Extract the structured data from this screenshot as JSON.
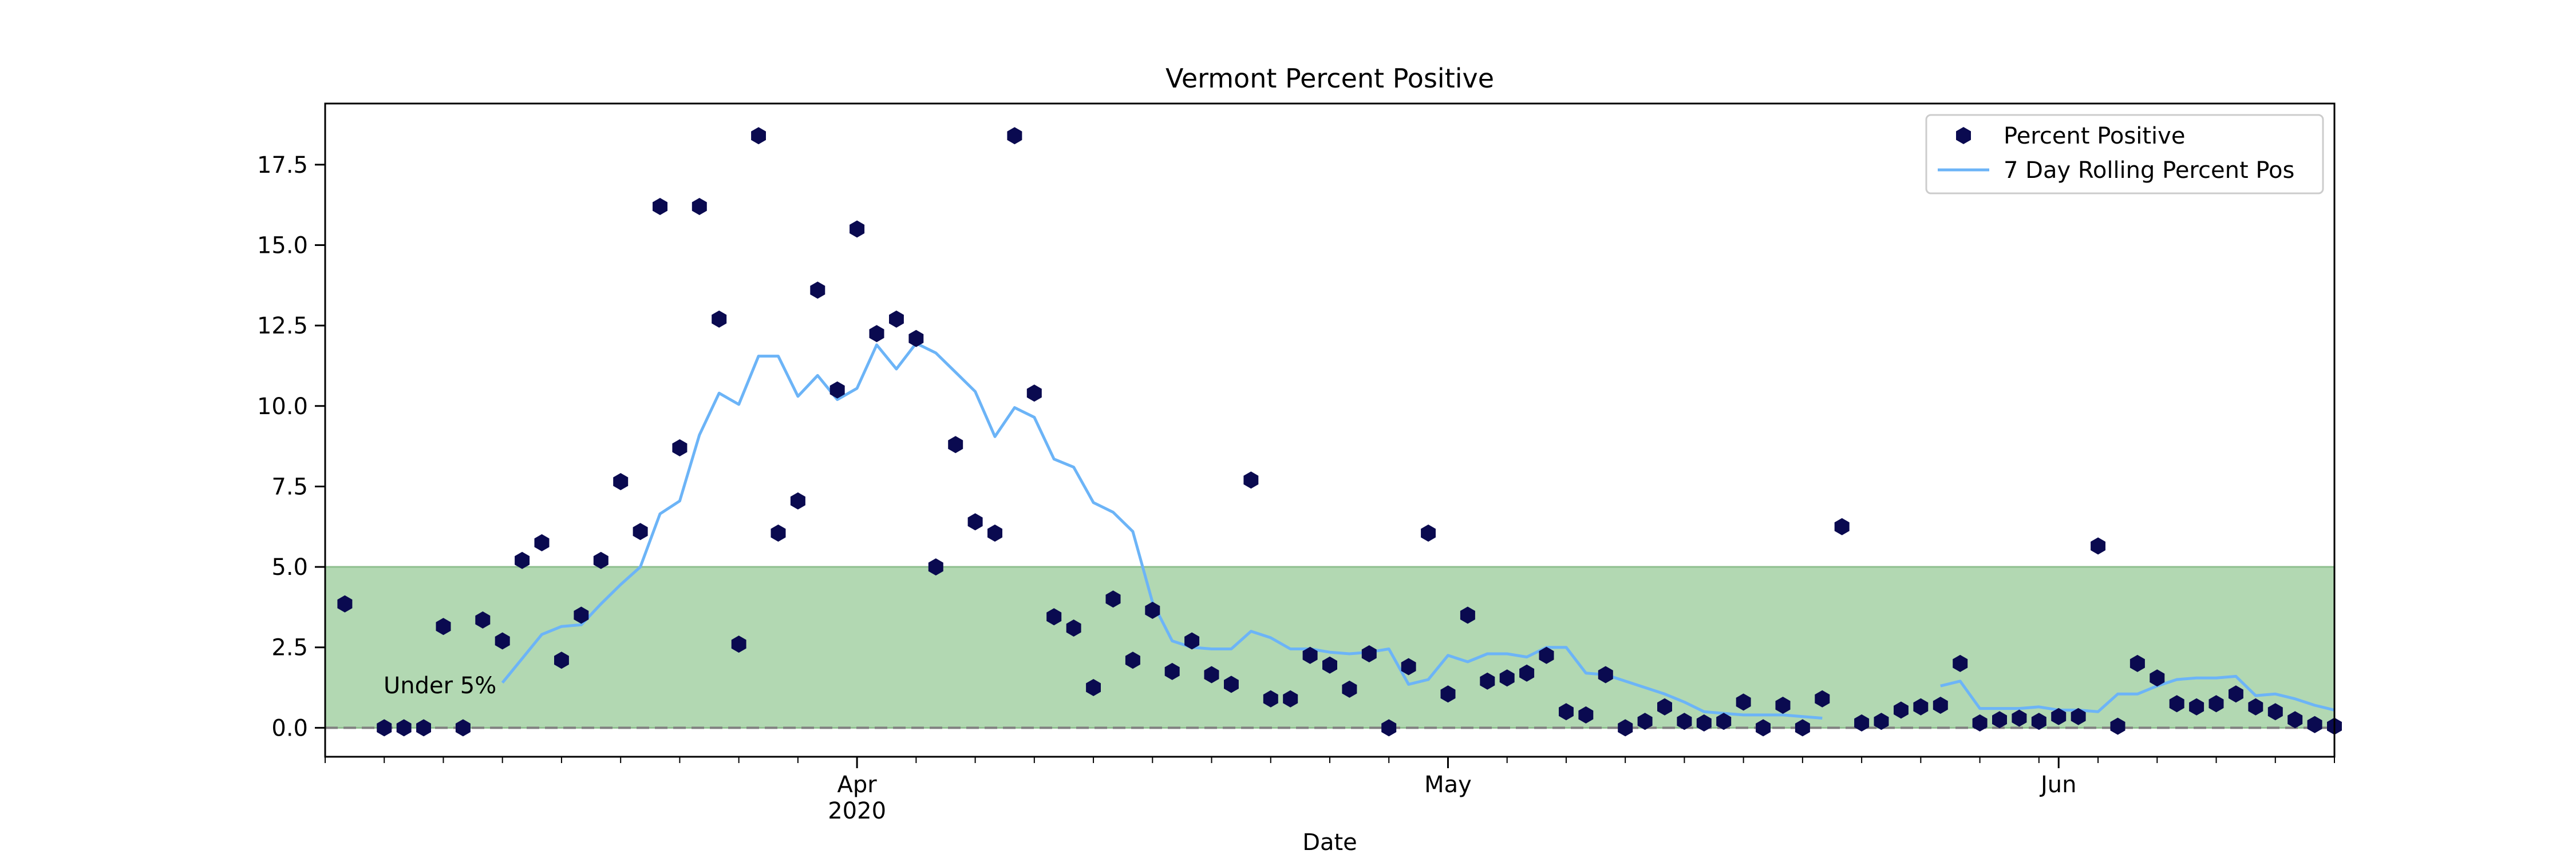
{
  "chart_data": {
    "type": "scatter",
    "title": "Vermont Percent Positive",
    "xlabel": "Date",
    "ylabel": "",
    "x_range": [
      "2020-03-05",
      "2020-06-15"
    ],
    "ylim": [
      -0.9,
      19.4
    ],
    "yticks": [
      0.0,
      2.5,
      5.0,
      7.5,
      10.0,
      12.5,
      15.0,
      17.5
    ],
    "ytick_labels": [
      "0.0",
      "2.5",
      "5.0",
      "7.5",
      "10.0",
      "12.5",
      "15.0",
      "17.5"
    ],
    "xticks": [
      {
        "date": "2020-04-01",
        "label": "Apr",
        "label2": "2020"
      },
      {
        "date": "2020-05-01",
        "label": "May",
        "label2": ""
      },
      {
        "date": "2020-06-01",
        "label": "Jun",
        "label2": ""
      }
    ],
    "minor_tick_interval_days": 3,
    "grid": false,
    "legend_position": "top-right",
    "threshold": {
      "value": 5.0,
      "label": "Under 5%",
      "fill": "#b2d8b2",
      "edge": "#8fbf8f"
    },
    "zero_line": {
      "value": 0.0,
      "color": "#808080"
    },
    "series": [
      {
        "name": "Percent Positive",
        "kind": "points",
        "color": "#0a0a50",
        "x": [
          "2020-03-06",
          "2020-03-08",
          "2020-03-09",
          "2020-03-10",
          "2020-03-11",
          "2020-03-12",
          "2020-03-13",
          "2020-03-14",
          "2020-03-15",
          "2020-03-16",
          "2020-03-17",
          "2020-03-18",
          "2020-03-19",
          "2020-03-20",
          "2020-03-21",
          "2020-03-22",
          "2020-03-23",
          "2020-03-24",
          "2020-03-25",
          "2020-03-26",
          "2020-03-27",
          "2020-03-28",
          "2020-03-29",
          "2020-03-30",
          "2020-03-31",
          "2020-04-01",
          "2020-04-02",
          "2020-04-03",
          "2020-04-04",
          "2020-04-05",
          "2020-04-06",
          "2020-04-07",
          "2020-04-08",
          "2020-04-09",
          "2020-04-10",
          "2020-04-11",
          "2020-04-12",
          "2020-04-13",
          "2020-04-14",
          "2020-04-15",
          "2020-04-16",
          "2020-04-17",
          "2020-04-18",
          "2020-04-19",
          "2020-04-20",
          "2020-04-21",
          "2020-04-22",
          "2020-04-23",
          "2020-04-24",
          "2020-04-25",
          "2020-04-26",
          "2020-04-27",
          "2020-04-28",
          "2020-04-29",
          "2020-04-30",
          "2020-05-01",
          "2020-05-02",
          "2020-05-03",
          "2020-05-04",
          "2020-05-05",
          "2020-05-06",
          "2020-05-07",
          "2020-05-08",
          "2020-05-09",
          "2020-05-10",
          "2020-05-11",
          "2020-05-12",
          "2020-05-13",
          "2020-05-14",
          "2020-05-15",
          "2020-05-16",
          "2020-05-17",
          "2020-05-18",
          "2020-05-19",
          "2020-05-20",
          "2020-05-21",
          "2020-05-22",
          "2020-05-23",
          "2020-05-24",
          "2020-05-25",
          "2020-05-26",
          "2020-05-27",
          "2020-05-28",
          "2020-05-29",
          "2020-05-30",
          "2020-05-31",
          "2020-06-01",
          "2020-06-02",
          "2020-06-03",
          "2020-06-04",
          "2020-06-05",
          "2020-06-06",
          "2020-06-07",
          "2020-06-08",
          "2020-06-09",
          "2020-06-10",
          "2020-06-11",
          "2020-06-12",
          "2020-06-13",
          "2020-06-14",
          "2020-06-15"
        ],
        "y": [
          3.85,
          0.0,
          0.0,
          0.0,
          3.15,
          0.0,
          3.35,
          2.7,
          5.2,
          5.75,
          2.1,
          3.5,
          5.2,
          7.65,
          6.1,
          16.2,
          8.7,
          16.2,
          12.7,
          2.6,
          18.4,
          6.05,
          7.05,
          13.6,
          10.5,
          15.5,
          12.25,
          12.7,
          12.1,
          5.0,
          8.8,
          6.4,
          6.05,
          18.4,
          10.4,
          3.45,
          3.1,
          1.25,
          4.0,
          2.1,
          3.65,
          1.75,
          2.7,
          1.65,
          1.35,
          7.7,
          0.9,
          0.9,
          2.25,
          1.95,
          1.2,
          2.3,
          0.0,
          1.9,
          6.05,
          1.05,
          3.5,
          1.45,
          1.55,
          1.7,
          2.25,
          0.5,
          0.4,
          1.65,
          0.0,
          0.2,
          0.65,
          0.2,
          0.15,
          0.2,
          0.8,
          0.0,
          0.7,
          0.0,
          0.9,
          6.25,
          0.15,
          0.2,
          0.55,
          0.65,
          0.7,
          2.0,
          0.15,
          0.25,
          0.3,
          0.2,
          0.35,
          0.35,
          5.65,
          0.05,
          2.0,
          1.55,
          0.75,
          0.65,
          0.75,
          1.05,
          0.65,
          0.5,
          0.25,
          0.1,
          0.05
        ]
      },
      {
        "name": "7 Day Rolling Percent Pos",
        "kind": "line",
        "color": "#6cb4f7",
        "segments": [
          {
            "x": [
              "2020-03-14",
              "2020-03-15",
              "2020-03-16",
              "2020-03-17",
              "2020-03-18",
              "2020-03-19",
              "2020-03-20",
              "2020-03-21",
              "2020-03-22",
              "2020-03-23",
              "2020-03-24",
              "2020-03-25",
              "2020-03-26",
              "2020-03-27",
              "2020-03-28",
              "2020-03-29",
              "2020-03-30",
              "2020-03-31",
              "2020-04-01",
              "2020-04-02",
              "2020-04-03",
              "2020-04-04",
              "2020-04-05",
              "2020-04-06",
              "2020-04-07",
              "2020-04-08",
              "2020-04-09",
              "2020-04-10",
              "2020-04-11",
              "2020-04-12",
              "2020-04-13",
              "2020-04-14",
              "2020-04-15",
              "2020-04-16",
              "2020-04-17",
              "2020-04-18",
              "2020-04-19",
              "2020-04-20",
              "2020-04-21",
              "2020-04-22",
              "2020-04-23",
              "2020-04-24",
              "2020-04-25",
              "2020-04-26",
              "2020-04-27",
              "2020-04-28",
              "2020-04-29",
              "2020-04-30",
              "2020-05-01",
              "2020-05-02",
              "2020-05-03",
              "2020-05-04",
              "2020-05-05",
              "2020-05-06",
              "2020-05-07",
              "2020-05-08",
              "2020-05-09",
              "2020-05-10",
              "2020-05-11",
              "2020-05-12",
              "2020-05-13",
              "2020-05-14",
              "2020-05-15",
              "2020-05-16",
              "2020-05-17",
              "2020-05-18",
              "2020-05-19",
              "2020-05-20"
            ],
            "y": [
              1.4,
              2.15,
              2.9,
              3.15,
              3.2,
              3.85,
              4.45,
              5.0,
              6.65,
              7.05,
              9.1,
              10.4,
              10.05,
              11.55,
              11.55,
              10.3,
              10.95,
              10.2,
              10.55,
              11.9,
              11.15,
              11.95,
              11.65,
              11.05,
              10.45,
              9.05,
              9.95,
              9.65,
              8.35,
              8.1,
              7.0,
              6.7,
              6.1,
              3.9,
              2.7,
              2.5,
              2.45,
              2.45,
              3.0,
              2.8,
              2.45,
              2.45,
              2.35,
              2.3,
              2.35,
              2.45,
              1.35,
              1.5,
              2.25,
              2.05,
              2.3,
              2.3,
              2.2,
              2.5,
              2.5,
              1.7,
              1.65,
              1.45,
              1.25,
              1.05,
              0.8,
              0.5,
              0.45,
              0.4,
              0.4,
              0.4,
              0.35,
              0.3
            ]
          },
          {
            "x": [
              "2020-05-26",
              "2020-05-27",
              "2020-05-28",
              "2020-05-29",
              "2020-05-30",
              "2020-05-31",
              "2020-06-01",
              "2020-06-02",
              "2020-06-03",
              "2020-06-04",
              "2020-06-05",
              "2020-06-06",
              "2020-06-07",
              "2020-06-08",
              "2020-06-09",
              "2020-06-10",
              "2020-06-11",
              "2020-06-12",
              "2020-06-13",
              "2020-06-14",
              "2020-06-15"
            ],
            "y": [
              1.3,
              1.45,
              0.6,
              0.6,
              0.6,
              0.65,
              0.55,
              0.55,
              0.5,
              1.05,
              1.05,
              1.3,
              1.5,
              1.55,
              1.55,
              1.6,
              1.0,
              1.05,
              0.9,
              0.7,
              0.55
            ]
          }
        ]
      }
    ]
  }
}
